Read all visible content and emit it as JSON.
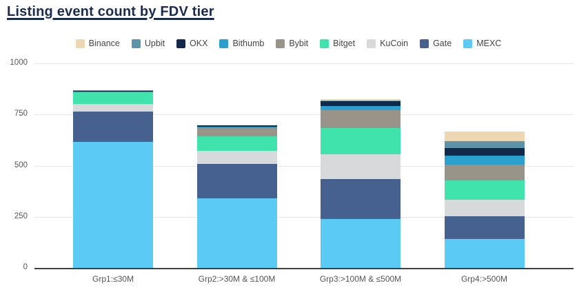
{
  "page": {
    "title": "Listing event count by FDV tier"
  },
  "colors": {
    "title_text": "#1a2b4d",
    "axis_text": "#555555",
    "legend_text": "#444444",
    "gridline": "#e5e5e5",
    "baseline": "#3f3f3f",
    "background": "#ffffff"
  },
  "chart_data": {
    "type": "bar",
    "stacked": true,
    "title": "Listing event count by FDV tier",
    "xlabel": "",
    "ylabel": "",
    "ylim": [
      0,
      1000
    ],
    "yticks": [
      0,
      250,
      500,
      750,
      1000
    ],
    "grid": "horizontal",
    "legend_position": "top-center",
    "categories": [
      "Grp1:≤30M",
      "Grp2:>30M & ≤100M",
      "Grp3:>100M & ≤500M",
      "Grp4:>500M"
    ],
    "series": [
      {
        "name": "Binance",
        "color": "#ecd7b2",
        "values": [
          0,
          0,
          6,
          48
        ]
      },
      {
        "name": "Upbit",
        "color": "#5e94a9",
        "values": [
          1,
          2,
          4,
          34
        ]
      },
      {
        "name": "OKX",
        "color": "#12294b",
        "values": [
          5,
          5,
          22,
          38
        ]
      },
      {
        "name": "Bithumb",
        "color": "#2b9fce",
        "values": [
          2,
          6,
          22,
          42
        ]
      },
      {
        "name": "Bybit",
        "color": "#98948a",
        "values": [
          2,
          42,
          86,
          78
        ]
      },
      {
        "name": "Bitget",
        "color": "#41e3ad",
        "values": [
          57,
          70,
          127,
          93
        ]
      },
      {
        "name": "KuCoin",
        "color": "#d8d9da",
        "values": [
          36,
          66,
          121,
          82
        ]
      },
      {
        "name": "Gate",
        "color": "#46618d",
        "values": [
          148,
          167,
          196,
          112
        ]
      },
      {
        "name": "MEXC",
        "color": "#5bcbf5",
        "values": [
          617,
          340,
          240,
          141
        ]
      }
    ],
    "stack_order_bottom_to_top": [
      "MEXC",
      "Gate",
      "KuCoin",
      "Bitget",
      "Bybit",
      "Bithumb",
      "OKX",
      "Upbit",
      "Binance"
    ],
    "totals": [
      868,
      698,
      824,
      668
    ]
  }
}
